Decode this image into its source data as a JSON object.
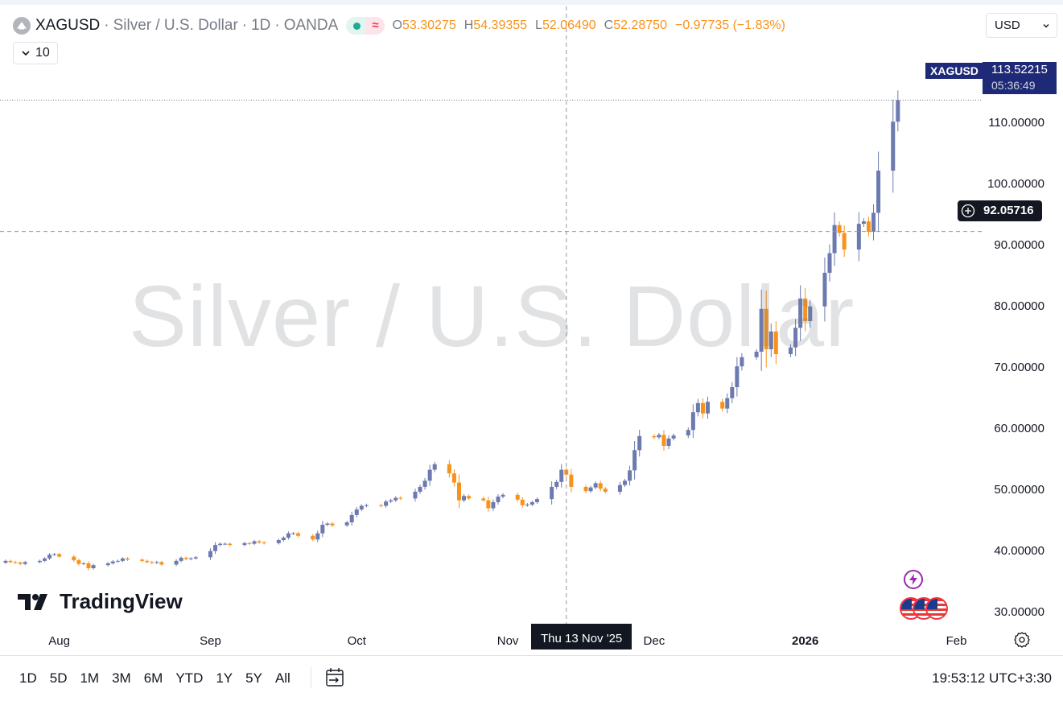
{
  "legend": {
    "symbol": "XAGUSD",
    "separator": "·",
    "name": "Silver / U.S. Dollar",
    "interval": "1D",
    "exchange": "OANDA",
    "status_icon": "market-status-dot-icon",
    "ohlc": {
      "o_label": "O",
      "o": "53.30275",
      "h_label": "H",
      "h": "54.39355",
      "l_label": "L",
      "l": "52.06490",
      "c_label": "C",
      "c": "52.28750",
      "change": "−0.97735 (−1.83%)"
    },
    "collapsed_count": "10"
  },
  "currency": {
    "value": "USD"
  },
  "watermark": "Silver / U.S. Dollar",
  "logo": "TradingView",
  "last_price": {
    "symbol": "XAGUSD",
    "price": "113.52215",
    "countdown": "05:36:49"
  },
  "crosshair": {
    "price": "92.05716",
    "date": "Thu 13 Nov '25"
  },
  "colors": {
    "up": "#6c7ab0",
    "down": "#f7931a",
    "price_box": "#1e2a78",
    "grid_text": "#131722",
    "crosshair_label": "#131722"
  },
  "range_buttons": [
    "1D",
    "5D",
    "1M",
    "3M",
    "6M",
    "YTD",
    "1Y",
    "5Y",
    "All"
  ],
  "clock": "19:53:12 UTC+3:30",
  "chart_data": {
    "type": "candlestick",
    "y_axis": {
      "ticks": [
        "30.00000",
        "40.00000",
        "50.00000",
        "60.00000",
        "70.00000",
        "80.00000",
        "90.00000",
        "100.00000",
        "110.00000"
      ],
      "range": [
        27,
        122
      ]
    },
    "x_axis": {
      "labels": [
        "Aug",
        "Sep",
        "Oct",
        "Nov",
        "Dec",
        "2026",
        "Feb"
      ]
    },
    "date_range": [
      "2025-07-21",
      "2026-01-23"
    ],
    "closes": [
      38.2,
      38.0,
      37.9,
      37.7,
      38.0,
      38.2,
      38.6,
      39.2,
      39.3,
      38.9,
      38.3,
      37.7,
      37.8,
      37.0,
      37.5,
      37.8,
      38.1,
      38.2,
      38.6,
      38.4,
      38.2,
      38.0,
      37.9,
      38.0,
      37.6,
      38.2,
      38.7,
      38.5,
      38.6,
      38.8,
      39.8,
      40.8,
      41.0,
      41.0,
      40.8,
      41.1,
      41.0,
      41.4,
      41.2,
      41.1,
      41.6,
      42.0,
      42.7,
      42.7,
      42.3,
      41.7,
      42.7,
      44.1,
      44.3,
      44.0,
      44.5,
      45.7,
      46.6,
      47.2,
      47.3,
      47.2,
      47.9,
      48.1,
      48.5,
      48.4,
      49.5,
      50.3,
      51.3,
      53.1,
      54.0,
      52.5,
      51.0,
      48.1,
      48.8,
      48.4,
      48.1,
      46.8,
      47.8,
      48.7,
      49.0,
      48.2,
      47.3,
      47.4,
      47.8,
      48.3,
      50.3,
      51.1,
      53.1,
      52.3,
      50.3,
      49.6,
      50.2,
      50.9,
      50.0,
      49.5,
      50.6,
      51.3,
      53.0,
      56.3,
      58.6,
      58.4,
      58.8,
      57.0,
      58.2,
      58.7,
      59.6,
      62.5,
      64.0,
      62.3,
      64.2,
      63.1,
      64.8,
      66.6,
      70.0,
      71.5,
      72.4,
      79.4,
      72.8,
      75.7,
      72.0,
      73.1,
      76.3,
      81.1,
      77.4,
      79.8,
      85.3,
      88.5,
      93.1,
      91.8,
      89.1,
      93.3,
      93.7,
      92.0,
      95.1,
      102.0,
      110.0,
      113.52
    ]
  }
}
